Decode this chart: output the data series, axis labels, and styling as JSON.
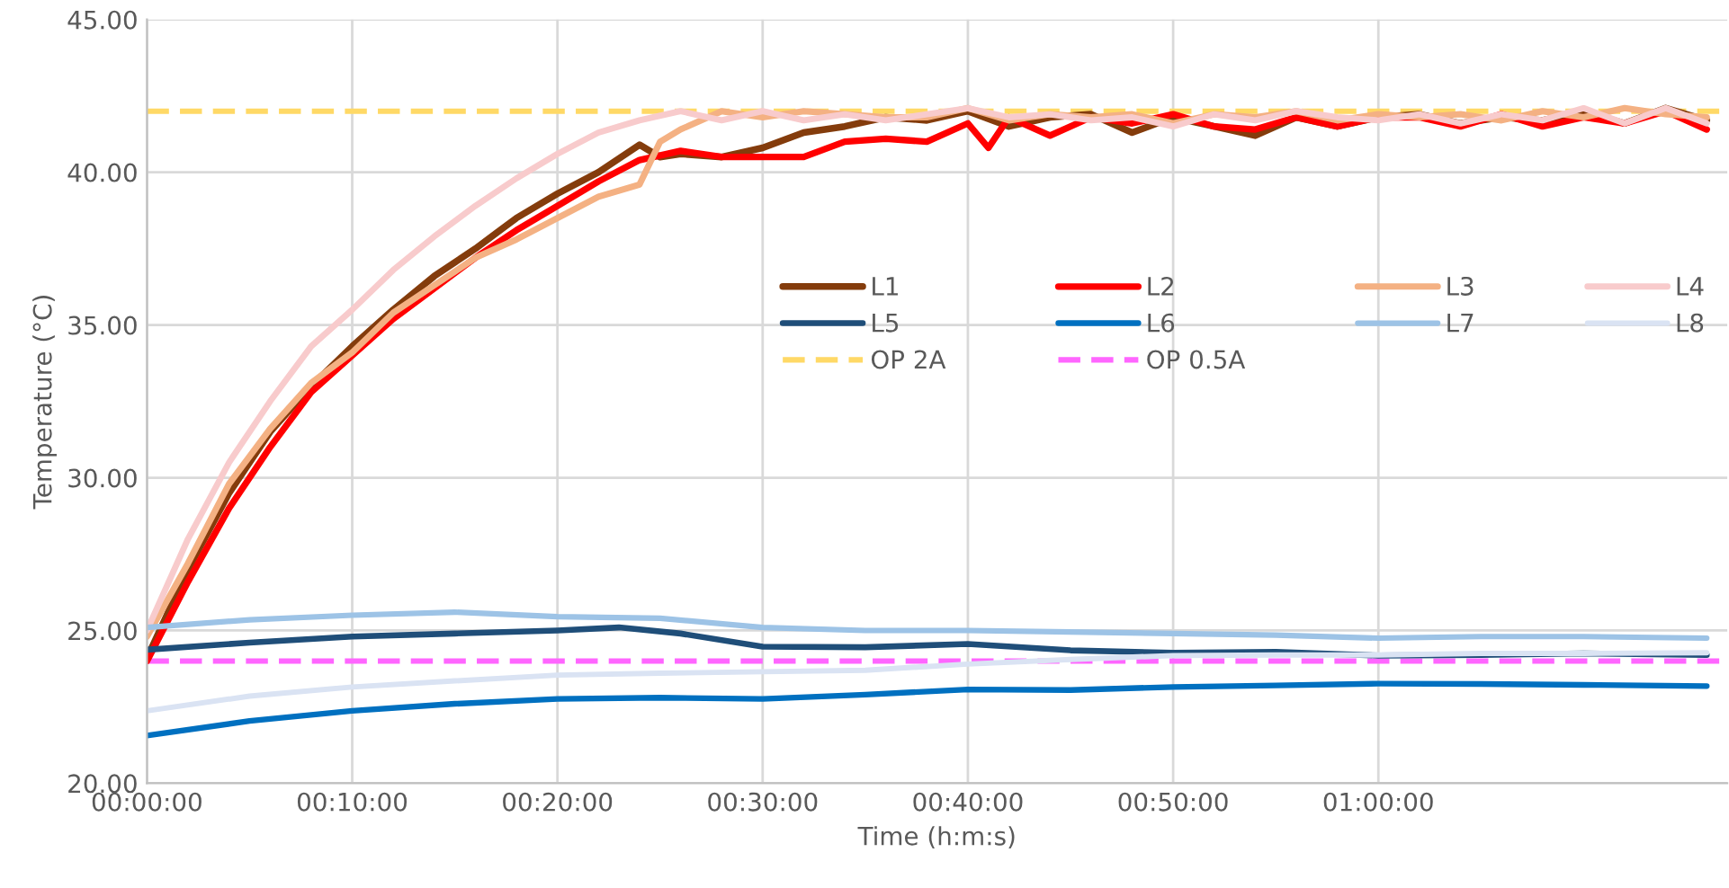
{
  "chart_data": {
    "type": "line",
    "xlabel": "Time (h:m:s)",
    "ylabel": "Temperature (°C)",
    "xlim": [
      0,
      77
    ],
    "ylim": [
      20,
      45
    ],
    "xticks": [
      {
        "value": 0,
        "label": "00:00:00"
      },
      {
        "value": 10,
        "label": "00:10:00"
      },
      {
        "value": 20,
        "label": "00:20:00"
      },
      {
        "value": 30,
        "label": "00:30:00"
      },
      {
        "value": 40,
        "label": "00:40:00"
      },
      {
        "value": 50,
        "label": "00:50:00"
      },
      {
        "value": 60,
        "label": "01:00:00"
      }
    ],
    "yticks": [
      {
        "value": 20,
        "label": "20.00"
      },
      {
        "value": 25,
        "label": "25.00"
      },
      {
        "value": 30,
        "label": "30.00"
      },
      {
        "value": 35,
        "label": "35.00"
      },
      {
        "value": 40,
        "label": "40.00"
      },
      {
        "value": 45,
        "label": "45.00"
      }
    ],
    "grid": true,
    "legend": "right",
    "marker": "none",
    "line_style": "solid",
    "series": [
      {
        "name": "L1",
        "color": "#843c0c",
        "x": [
          0,
          2,
          4,
          6,
          8,
          10,
          12,
          14,
          16,
          18,
          20,
          22,
          24,
          25,
          26,
          28,
          30,
          32,
          34,
          36,
          38,
          40,
          42,
          44,
          46,
          48,
          50,
          52,
          54,
          56,
          58,
          60,
          62,
          64,
          66,
          68,
          70,
          72,
          74,
          76
        ],
        "values": [
          24.1,
          27.0,
          29.5,
          31.5,
          33.0,
          34.3,
          35.5,
          36.6,
          37.5,
          38.5,
          39.3,
          40.0,
          40.9,
          40.5,
          40.6,
          40.5,
          40.8,
          41.3,
          41.5,
          41.8,
          41.7,
          42.0,
          41.5,
          41.8,
          41.9,
          41.3,
          41.8,
          41.5,
          41.2,
          41.8,
          41.5,
          41.8,
          41.9,
          41.6,
          41.8,
          41.7,
          42.0,
          41.6,
          42.1,
          41.7
        ]
      },
      {
        "name": "L2",
        "color": "#ff0000",
        "x": [
          0,
          2,
          4,
          6,
          8,
          10,
          12,
          14,
          16,
          18,
          20,
          22,
          24,
          26,
          28,
          30,
          32,
          34,
          36,
          38,
          40,
          41,
          42,
          44,
          46,
          48,
          50,
          52,
          54,
          56,
          58,
          60,
          62,
          64,
          66,
          68,
          70,
          72,
          74,
          76
        ],
        "values": [
          24.0,
          26.6,
          29.0,
          31.0,
          32.8,
          34.0,
          35.2,
          36.2,
          37.2,
          38.1,
          38.9,
          39.7,
          40.4,
          40.7,
          40.5,
          40.5,
          40.5,
          41.0,
          41.1,
          41.0,
          41.6,
          40.8,
          41.8,
          41.2,
          41.8,
          41.6,
          41.9,
          41.5,
          41.4,
          41.8,
          41.5,
          41.8,
          41.8,
          41.5,
          41.9,
          41.5,
          41.8,
          41.6,
          42.0,
          41.4
        ]
      },
      {
        "name": "L3",
        "color": "#f4b183",
        "x": [
          0,
          2,
          4,
          6,
          8,
          10,
          12,
          14,
          16,
          18,
          20,
          22,
          24,
          25,
          26,
          28,
          30,
          32,
          34,
          36,
          38,
          40,
          42,
          44,
          46,
          48,
          50,
          52,
          54,
          56,
          58,
          60,
          62,
          64,
          66,
          68,
          70,
          72,
          74,
          76
        ],
        "values": [
          24.8,
          27.2,
          29.8,
          31.6,
          33.1,
          34.1,
          35.4,
          36.3,
          37.2,
          37.8,
          38.5,
          39.2,
          39.6,
          41.0,
          41.4,
          42.0,
          41.8,
          42.0,
          41.9,
          41.8,
          41.8,
          42.1,
          41.7,
          41.9,
          41.8,
          41.9,
          41.6,
          41.9,
          41.8,
          42.0,
          41.7,
          41.9,
          41.8,
          41.9,
          41.7,
          42.0,
          41.8,
          42.1,
          41.9,
          41.8
        ]
      },
      {
        "name": "L4",
        "color": "#f8cbcc",
        "x": [
          0,
          2,
          4,
          6,
          8,
          10,
          12,
          14,
          16,
          18,
          20,
          22,
          24,
          26,
          28,
          30,
          32,
          34,
          36,
          38,
          40,
          42,
          44,
          46,
          48,
          50,
          52,
          54,
          56,
          58,
          60,
          62,
          64,
          66,
          68,
          70,
          72,
          74,
          76
        ],
        "values": [
          25.0,
          28.0,
          30.5,
          32.5,
          34.3,
          35.5,
          36.8,
          37.9,
          38.9,
          39.8,
          40.6,
          41.3,
          41.7,
          42.0,
          41.7,
          42.0,
          41.7,
          41.9,
          41.7,
          41.9,
          42.1,
          41.8,
          41.9,
          41.7,
          41.8,
          41.5,
          41.9,
          41.7,
          42.0,
          41.8,
          41.7,
          41.9,
          41.6,
          41.9,
          41.7,
          42.1,
          41.6,
          42.1,
          41.6
        ]
      },
      {
        "name": "L5",
        "color": "#1f4e79",
        "x": [
          0,
          5,
          10,
          15,
          20,
          23,
          26,
          30,
          35,
          40,
          45,
          50,
          55,
          60,
          65,
          70,
          76
        ],
        "values": [
          24.37,
          24.6,
          24.8,
          24.9,
          25.0,
          25.1,
          24.9,
          24.47,
          24.45,
          24.56,
          24.35,
          24.27,
          24.3,
          24.18,
          24.2,
          24.25,
          24.2
        ]
      },
      {
        "name": "L6",
        "color": "#0070c0",
        "x": [
          0,
          5,
          10,
          15,
          20,
          25,
          30,
          35,
          40,
          45,
          50,
          55,
          60,
          65,
          70,
          76
        ],
        "values": [
          21.56,
          22.04,
          22.37,
          22.6,
          22.76,
          22.8,
          22.76,
          22.9,
          23.07,
          23.05,
          23.15,
          23.2,
          23.26,
          23.25,
          23.22,
          23.18
        ]
      },
      {
        "name": "L7",
        "color": "#9dc3e6",
        "x": [
          0,
          5,
          10,
          15,
          20,
          25,
          30,
          35,
          40,
          45,
          50,
          55,
          60,
          65,
          70,
          76
        ],
        "values": [
          25.1,
          25.35,
          25.5,
          25.6,
          25.45,
          25.4,
          25.1,
          25.0,
          25.0,
          24.95,
          24.9,
          24.85,
          24.75,
          24.8,
          24.8,
          24.75
        ]
      },
      {
        "name": "L8",
        "color": "#dae3f3",
        "x": [
          0,
          5,
          10,
          15,
          20,
          25,
          30,
          35,
          40,
          45,
          50,
          55,
          60,
          65,
          70,
          76
        ],
        "values": [
          22.37,
          22.85,
          23.15,
          23.35,
          23.54,
          23.6,
          23.65,
          23.7,
          23.9,
          24.05,
          24.18,
          24.2,
          24.2,
          24.25,
          24.25,
          24.27
        ]
      }
    ],
    "ref_lines": [
      {
        "axis": "y",
        "value": 42,
        "label": "OP 2A",
        "color": "#ffd966",
        "line_style": "dashed"
      },
      {
        "axis": "y",
        "value": 24,
        "label": "OP 0.5A",
        "color": "#ff66ff",
        "line_style": "dashed"
      }
    ]
  }
}
